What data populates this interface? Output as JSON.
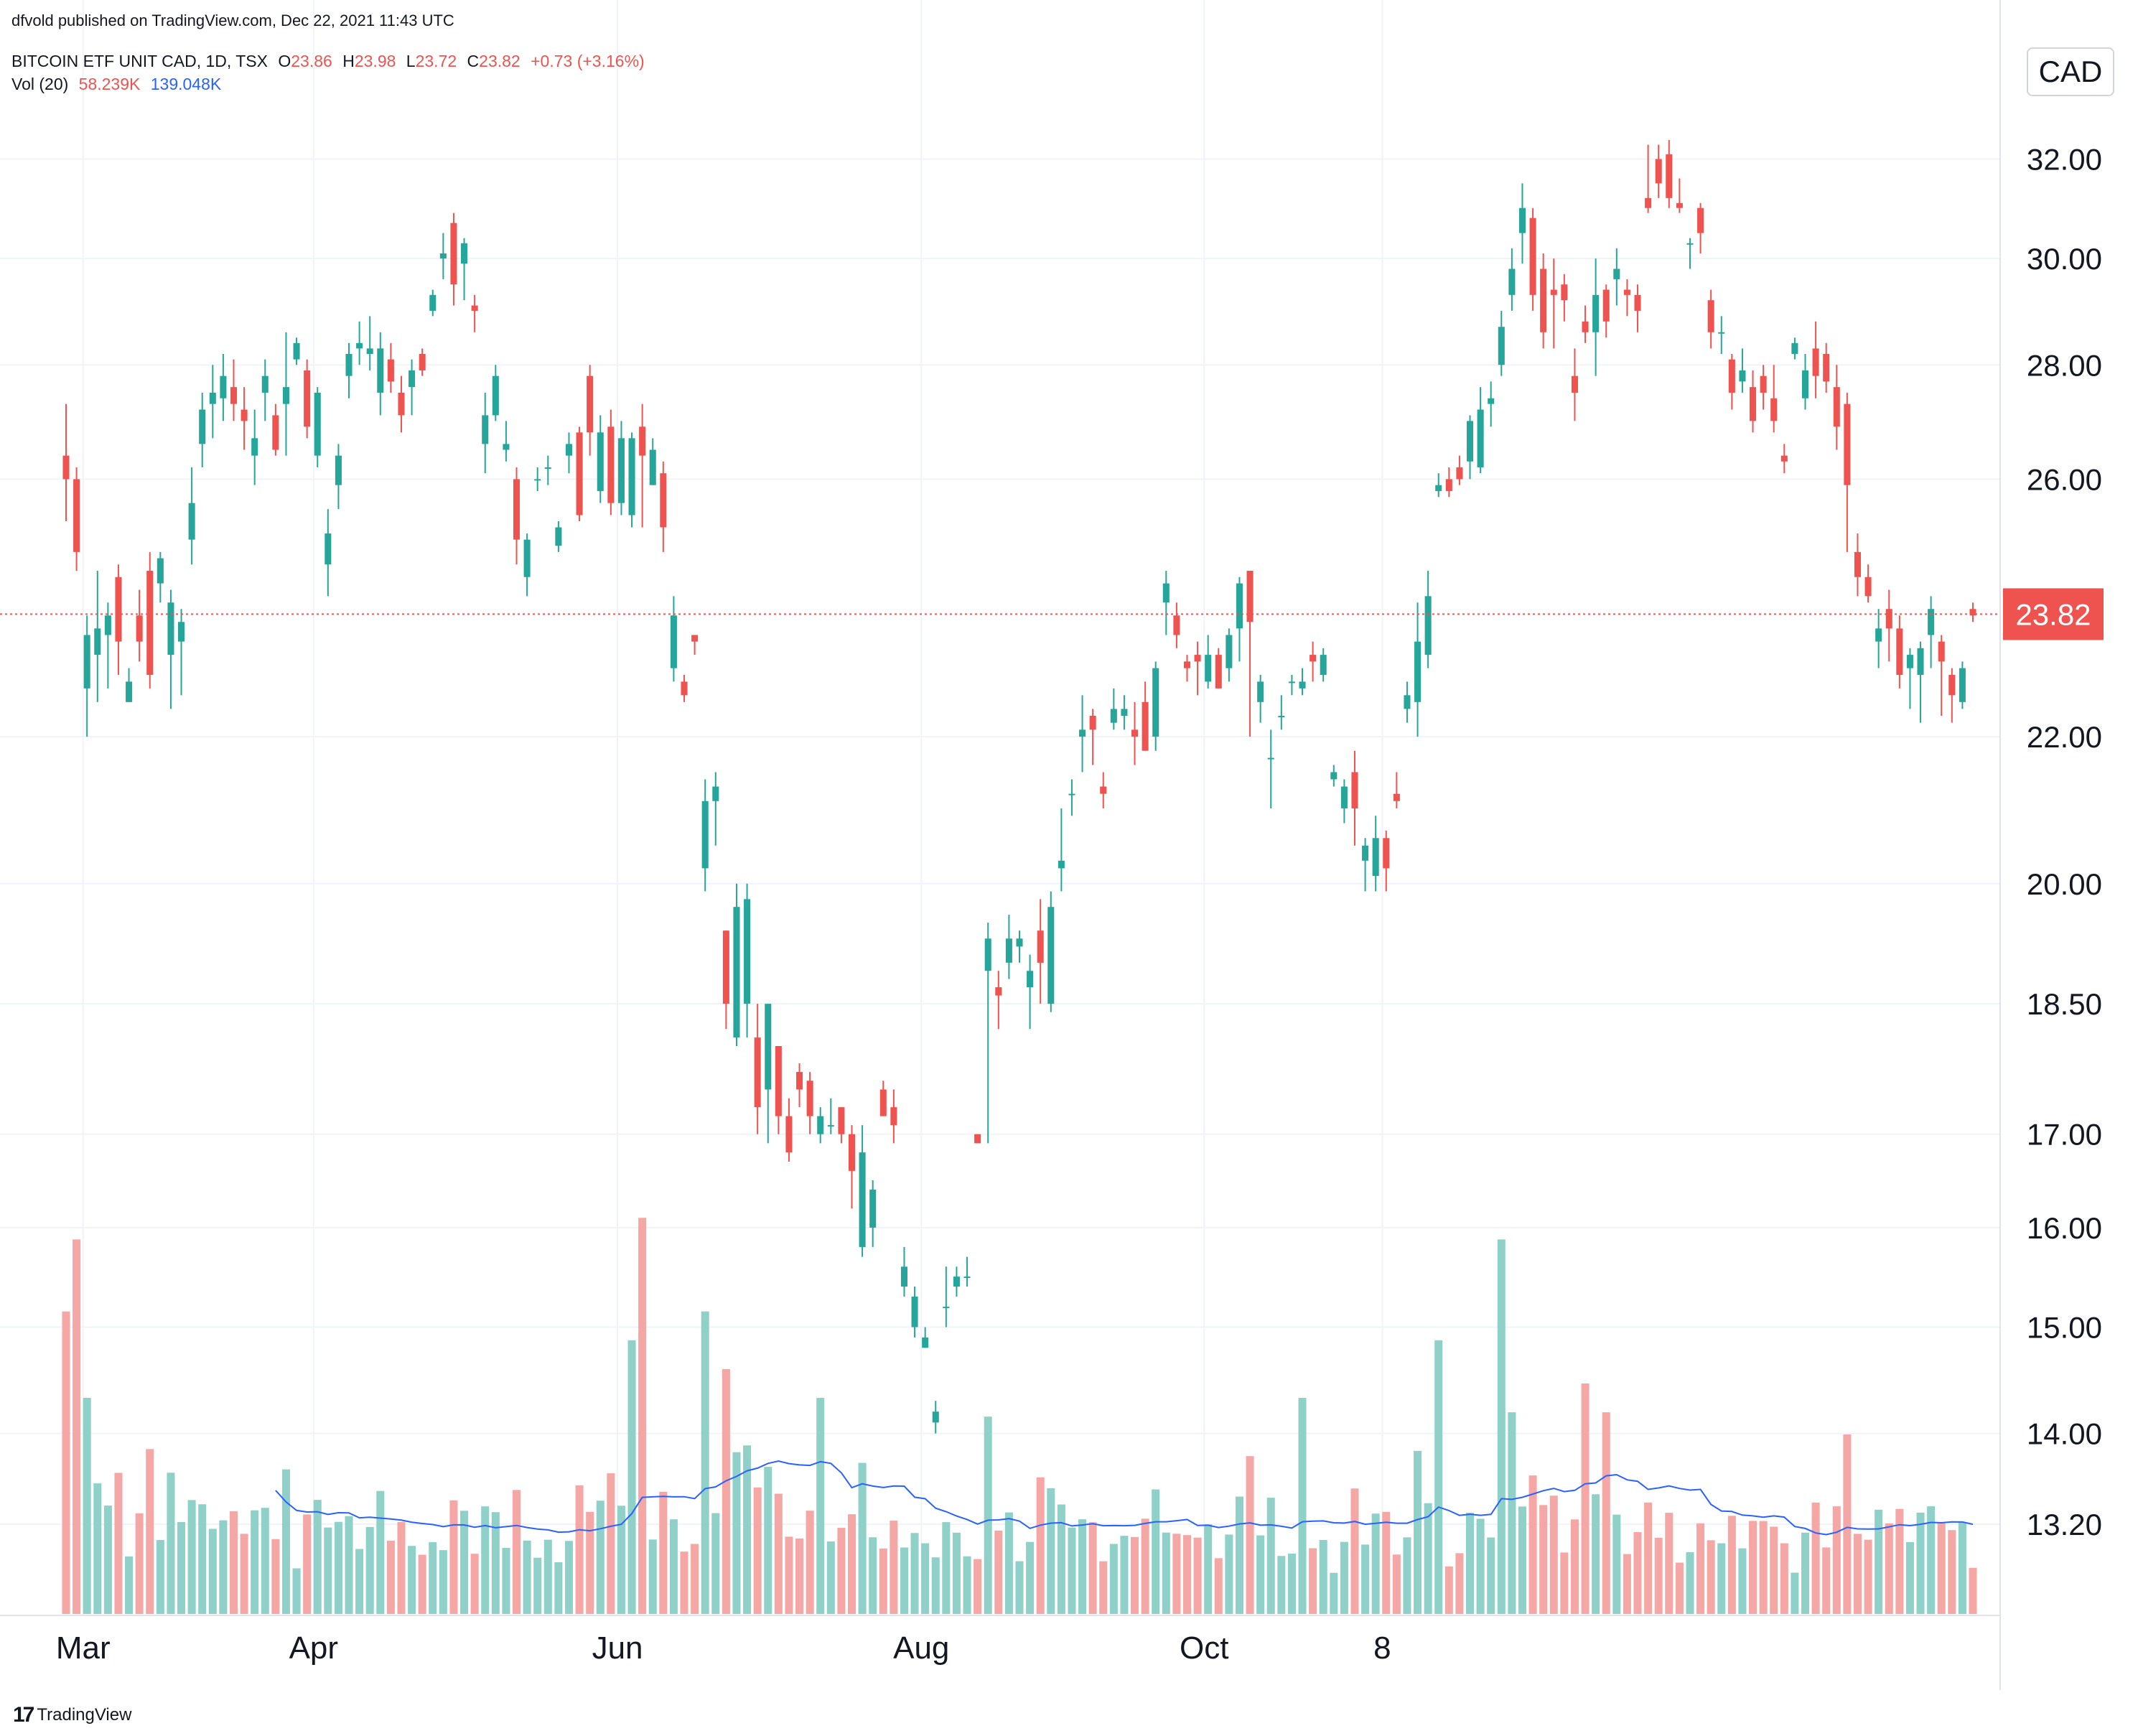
{
  "published_by": "dfvold published on TradingView.com, Dec 22, 2021 11:43 UTC",
  "symbol_line": {
    "name": "BITCOIN ETF UNIT CAD, 1D, TSX",
    "open_label": "O",
    "open": "23.86",
    "high_label": "H",
    "high": "23.98",
    "low_label": "L",
    "low": "23.72",
    "close_label": "C",
    "close": "23.82",
    "change": "+0.73 (+3.16%)"
  },
  "volume_line": {
    "label": "Vol (20)",
    "value": "58.239K",
    "ma_value": "139.048K"
  },
  "currency": "CAD",
  "current_price_label": "23.82",
  "footer_logo_text": "TradingView",
  "colors": {
    "up": "#26a69a",
    "down": "#ef5350",
    "up_vol": "#8fd1c8",
    "down_vol": "#f5a7a5",
    "ma": "#2962ff",
    "grid": "#f0f3fa",
    "text": "#131722"
  },
  "chart_data": {
    "type": "candlestick",
    "y_scale": "log",
    "ylim": [
      12.5,
      34.5
    ],
    "y_ticks": [
      "32.00",
      "30.00",
      "28.00",
      "26.00",
      "22.00",
      "20.00",
      "18.50",
      "17.00",
      "16.00",
      "15.00",
      "14.00",
      "13.20"
    ],
    "x_ticks": [
      {
        "label": "Mar",
        "index": 3
      },
      {
        "label": "Apr",
        "index": 25
      },
      {
        "label": "Jun",
        "index": 54
      },
      {
        "label": "Aug",
        "index": 83
      },
      {
        "label": "Oct",
        "index": 110
      },
      {
        "label": "8",
        "index": 127
      }
    ],
    "current_price": 23.82,
    "candles": [
      [
        26.4,
        26.0,
        27.3,
        25.3
      ],
      [
        26.0,
        24.8,
        26.2,
        24.5
      ],
      [
        22.7,
        23.5,
        23.8,
        22.0
      ],
      [
        23.2,
        23.6,
        24.5,
        22.5
      ],
      [
        23.5,
        23.8,
        24.0,
        22.7
      ],
      [
        24.4,
        23.4,
        24.6,
        22.9
      ],
      [
        22.5,
        22.8,
        23.0,
        22.5
      ],
      [
        23.8,
        23.4,
        24.2,
        23.1
      ],
      [
        24.5,
        22.9,
        24.8,
        22.7
      ],
      [
        24.3,
        24.7,
        24.8,
        24.0
      ],
      [
        23.2,
        24.0,
        24.2,
        22.4
      ],
      [
        23.4,
        23.7,
        23.9,
        22.6
      ],
      [
        25.0,
        25.6,
        26.2,
        24.6
      ],
      [
        26.6,
        27.2,
        27.5,
        26.2
      ],
      [
        27.3,
        27.5,
        28.0,
        26.7
      ],
      [
        27.4,
        27.8,
        28.2,
        27.0
      ],
      [
        27.6,
        27.3,
        28.1,
        27.0
      ],
      [
        27.2,
        27.0,
        27.6,
        26.5
      ],
      [
        26.4,
        26.7,
        27.2,
        25.9
      ],
      [
        27.5,
        27.8,
        28.1,
        27.0
      ],
      [
        27.1,
        26.5,
        27.3,
        26.4
      ],
      [
        27.3,
        27.6,
        28.6,
        26.4
      ],
      [
        28.1,
        28.4,
        28.5,
        28.0
      ],
      [
        27.9,
        26.9,
        28.1,
        26.7
      ],
      [
        26.4,
        27.5,
        27.6,
        26.2
      ],
      [
        24.6,
        25.1,
        25.5,
        24.1
      ],
      [
        25.9,
        26.4,
        26.6,
        25.5
      ],
      [
        27.8,
        28.2,
        28.4,
        27.4
      ],
      [
        28.3,
        28.4,
        28.8,
        28.0
      ],
      [
        28.2,
        28.3,
        28.9,
        27.9
      ],
      [
        27.5,
        28.3,
        28.6,
        27.1
      ],
      [
        28.1,
        27.7,
        28.4,
        27.5
      ],
      [
        27.5,
        27.1,
        27.8,
        26.8
      ],
      [
        27.6,
        27.9,
        28.1,
        27.1
      ],
      [
        28.2,
        27.9,
        28.3,
        27.8
      ],
      [
        29.0,
        29.3,
        29.4,
        28.9
      ],
      [
        30.0,
        30.1,
        30.5,
        29.6
      ],
      [
        30.7,
        29.5,
        30.9,
        29.1
      ],
      [
        29.9,
        30.3,
        30.4,
        29.2
      ],
      [
        29.1,
        29.0,
        29.3,
        28.6
      ],
      [
        26.6,
        27.1,
        27.5,
        26.1
      ],
      [
        27.1,
        27.8,
        28.0,
        27.0
      ],
      [
        26.5,
        26.6,
        27.0,
        26.3
      ],
      [
        26.0,
        25.0,
        26.2,
        24.6
      ],
      [
        24.4,
        25.0,
        25.1,
        24.1
      ],
      [
        26.0,
        26.0,
        26.2,
        25.8
      ],
      [
        26.2,
        26.2,
        26.4,
        25.9
      ],
      [
        24.9,
        25.2,
        25.3,
        24.8
      ],
      [
        26.4,
        26.6,
        26.8,
        26.1
      ],
      [
        26.8,
        25.4,
        26.9,
        25.3
      ]
    ],
    "candles_2": [
      [
        27.8,
        26.8,
        28.0,
        26.4
      ],
      [
        25.8,
        26.8,
        27.1,
        25.6
      ],
      [
        26.9,
        25.6,
        27.2,
        25.4
      ],
      [
        25.6,
        26.7,
        27.0,
        25.4
      ],
      [
        25.4,
        26.7,
        26.8,
        25.2
      ],
      [
        26.9,
        26.4,
        27.3,
        25.2
      ],
      [
        25.9,
        26.5,
        26.7,
        25.9
      ],
      [
        26.1,
        25.2,
        26.3,
        24.8
      ],
      [
        23.0,
        23.8,
        24.1,
        22.8
      ],
      [
        22.8,
        22.6,
        22.9,
        22.5
      ],
      [
        23.5,
        23.4,
        23.5,
        23.2
      ],
      [
        20.2,
        21.1,
        21.4,
        19.9
      ],
      [
        21.1,
        21.3,
        21.5,
        20.5
      ],
      [
        19.4,
        18.5,
        19.4,
        18.2
      ],
      [
        18.1,
        19.7,
        20.0,
        18.0
      ],
      [
        18.5,
        19.8,
        20.0,
        18.1
      ],
      [
        18.1,
        17.3,
        18.5,
        17.0
      ],
      [
        17.5,
        18.5,
        18.5,
        16.9
      ],
      [
        18.0,
        17.2,
        18.0,
        17.0
      ],
      [
        17.2,
        16.8,
        17.4,
        16.7
      ],
      [
        17.7,
        17.5,
        17.8,
        17.3
      ],
      [
        17.6,
        17.2,
        17.7,
        17.0
      ],
      [
        17.0,
        17.2,
        17.3,
        16.9
      ],
      [
        17.1,
        17.1,
        17.4,
        17.0
      ],
      [
        17.3,
        17.0,
        17.3,
        16.9
      ],
      [
        17.0,
        16.6,
        17.1,
        16.2
      ],
      [
        15.8,
        16.8,
        17.1,
        15.7
      ],
      [
        16.0,
        16.4,
        16.5,
        15.8
      ],
      [
        17.5,
        17.2,
        17.6,
        17.2
      ],
      [
        17.3,
        17.1,
        17.5,
        16.9
      ]
    ]
  }
}
